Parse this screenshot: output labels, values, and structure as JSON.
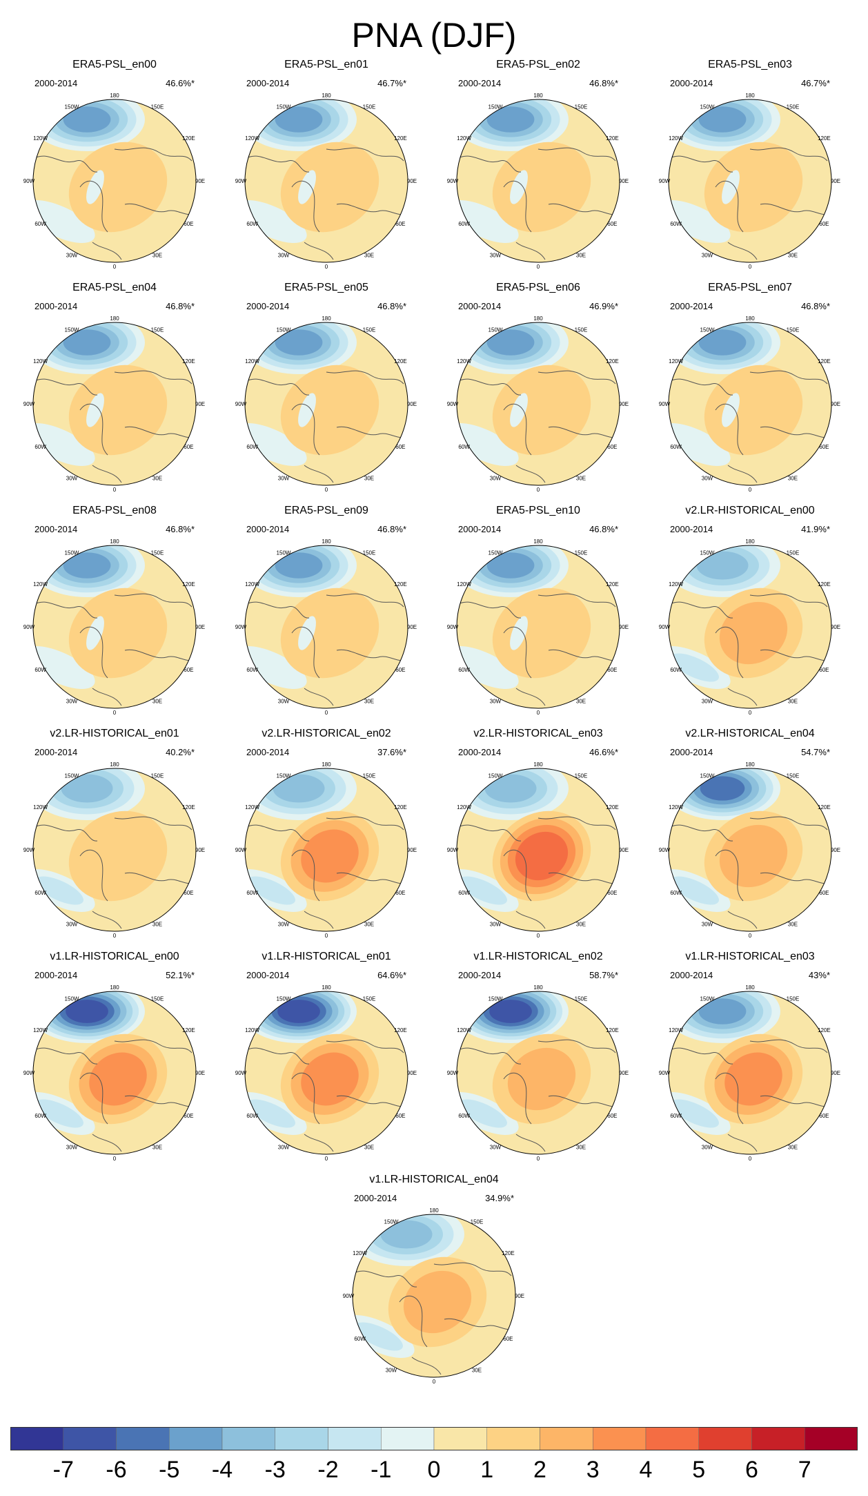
{
  "title": "PNA (DJF)",
  "panels": [
    {
      "label": "ERA5-PSL_en00",
      "period": "2000-2014",
      "pct": "46.6%*",
      "style": "era5",
      "aleu": 4.6,
      "land": 1.6
    },
    {
      "label": "ERA5-PSL_en01",
      "period": "2000-2014",
      "pct": "46.7%*",
      "style": "era5",
      "aleu": 4.6,
      "land": 1.6
    },
    {
      "label": "ERA5-PSL_en02",
      "period": "2000-2014",
      "pct": "46.8%*",
      "style": "era5",
      "aleu": 4.6,
      "land": 1.6
    },
    {
      "label": "ERA5-PSL_en03",
      "period": "2000-2014",
      "pct": "46.7%*",
      "style": "era5",
      "aleu": 4.6,
      "land": 1.6
    },
    {
      "label": "ERA5-PSL_en04",
      "period": "2000-2014",
      "pct": "46.8%*",
      "style": "era5",
      "aleu": 4.6,
      "land": 1.6
    },
    {
      "label": "ERA5-PSL_en05",
      "period": "2000-2014",
      "pct": "46.8%*",
      "style": "era5",
      "aleu": 4.6,
      "land": 1.6
    },
    {
      "label": "ERA5-PSL_en06",
      "period": "2000-2014",
      "pct": "46.9%*",
      "style": "era5",
      "aleu": 4.6,
      "land": 1.6
    },
    {
      "label": "ERA5-PSL_en07",
      "period": "2000-2014",
      "pct": "46.8%*",
      "style": "era5",
      "aleu": 4.6,
      "land": 1.6
    },
    {
      "label": "ERA5-PSL_en08",
      "period": "2000-2014",
      "pct": "46.8%*",
      "style": "era5",
      "aleu": 4.6,
      "land": 1.6
    },
    {
      "label": "ERA5-PSL_en09",
      "period": "2000-2014",
      "pct": "46.8%*",
      "style": "era5",
      "aleu": 4.6,
      "land": 1.6
    },
    {
      "label": "ERA5-PSL_en10",
      "period": "2000-2014",
      "pct": "46.8%*",
      "style": "era5",
      "aleu": 4.6,
      "land": 1.6
    },
    {
      "label": "v2.LR-HISTORICAL_en00",
      "period": "2000-2014",
      "pct": "41.9%*",
      "style": "model",
      "aleu": 4.4,
      "land": 2.6
    },
    {
      "label": "v2.LR-HISTORICAL_en01",
      "period": "2000-2014",
      "pct": "40.2%*",
      "style": "model",
      "aleu": 3.6,
      "land": 1.6
    },
    {
      "label": "v2.LR-HISTORICAL_en02",
      "period": "2000-2014",
      "pct": "37.6%*",
      "style": "model",
      "aleu": 3.8,
      "land": 3.6
    },
    {
      "label": "v2.LR-HISTORICAL_en03",
      "period": "2000-2014",
      "pct": "46.6%*",
      "style": "model",
      "aleu": 4.4,
      "land": 4.6
    },
    {
      "label": "v2.LR-HISTORICAL_en04",
      "period": "2000-2014",
      "pct": "54.7%*",
      "style": "model",
      "aleu": 5.6,
      "land": 2.8
    },
    {
      "label": "v1.LR-HISTORICAL_en00",
      "period": "2000-2014",
      "pct": "52.1%*",
      "style": "model",
      "aleu": 6.6,
      "land": 3.8
    },
    {
      "label": "v1.LR-HISTORICAL_en01",
      "period": "2000-2014",
      "pct": "64.6%*",
      "style": "model",
      "aleu": 7.0,
      "land": 4.2
    },
    {
      "label": "v1.LR-HISTORICAL_en02",
      "period": "2000-2014",
      "pct": "58.7%*",
      "style": "model",
      "aleu": 7.0,
      "land": 2.6
    },
    {
      "label": "v1.LR-HISTORICAL_en03",
      "period": "2000-2014",
      "pct": "43%*",
      "style": "model",
      "aleu": 4.8,
      "land": 3.8
    },
    {
      "label": "v1.LR-HISTORICAL_en04",
      "period": "2000-2014",
      "pct": "34.9%*",
      "style": "model",
      "aleu": 3.8,
      "land": 2.6
    }
  ],
  "lon_labels": [
    "180",
    "150E",
    "120E",
    "90E",
    "60E",
    "30E",
    "0",
    "30W",
    "60W",
    "90W",
    "120W",
    "150W"
  ],
  "colorbar": {
    "colors": [
      "#313695",
      "#3e55a6",
      "#4a74b4",
      "#6ba1cc",
      "#8dc0dc",
      "#a9d6e8",
      "#c6e6f1",
      "#e3f3f3",
      "#f9e6a8",
      "#fdd284",
      "#fdb567",
      "#fb9150",
      "#f46d43",
      "#e0402f",
      "#c72027",
      "#a50026"
    ],
    "ticks": [
      "-7",
      "-6",
      "-5",
      "-4",
      "-3",
      "-2",
      "-1",
      "0",
      "1",
      "2",
      "3",
      "4",
      "5",
      "6",
      "7"
    ]
  }
}
